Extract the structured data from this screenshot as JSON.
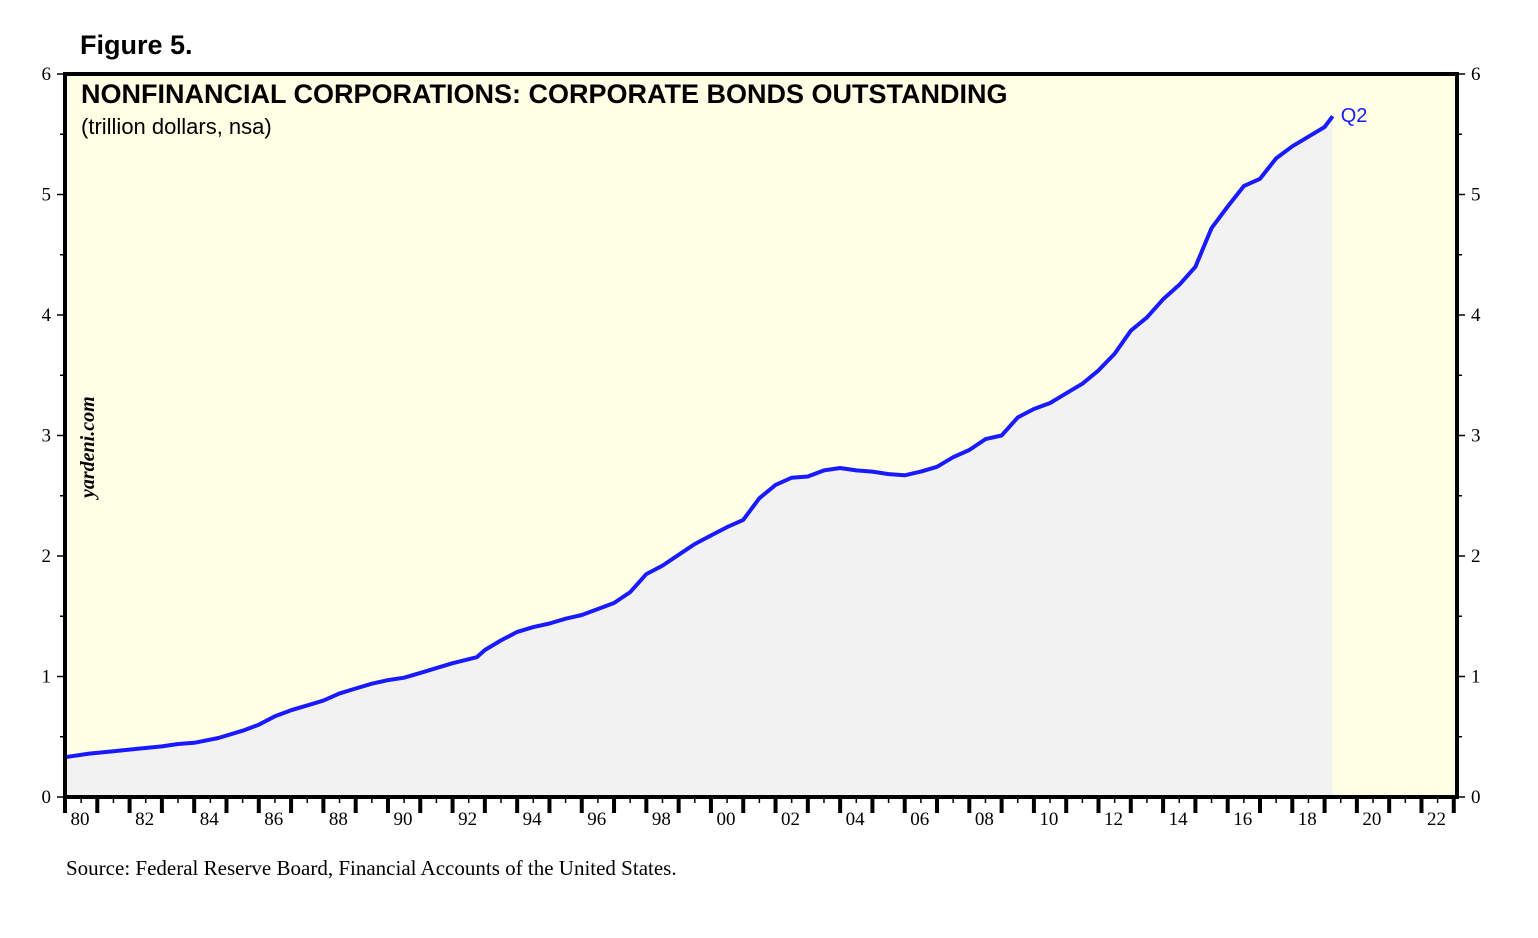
{
  "figure_label": "Figure 5.",
  "source": "Source: Federal Reserve Board, Financial Accounts of the United States.",
  "colors": {
    "background": "#ffffe6",
    "area": "#f2f2f2",
    "line": "#1a1aff",
    "frame": "#000000"
  },
  "chart_data": {
    "type": "area",
    "title": "NONFINANCIAL CORPORATIONS: CORPORATE BONDS OUTSTANDING",
    "subtitle": "(trillion dollars, nsa)",
    "watermark": "yardeni.com",
    "annotation": "Q2",
    "xlabel": "",
    "ylabel": "",
    "xlim": [
      1980,
      2023.1
    ],
    "ylim": [
      0,
      6
    ],
    "y_ticks": [
      0,
      1,
      2,
      3,
      4,
      5,
      6
    ],
    "y_tick_labels": [
      "0",
      "1",
      "2",
      "3",
      "4",
      "5",
      "6"
    ],
    "x_tick_labels": [
      "80",
      "82",
      "84",
      "86",
      "88",
      "90",
      "92",
      "94",
      "96",
      "98",
      "00",
      "02",
      "04",
      "06",
      "08",
      "10",
      "12",
      "14",
      "16",
      "18",
      "20",
      "22"
    ],
    "x_tick_years": [
      1980,
      1982,
      1984,
      1986,
      1988,
      1990,
      1992,
      1994,
      1996,
      1998,
      2000,
      2002,
      2004,
      2006,
      2008,
      2010,
      2012,
      2014,
      2016,
      2018,
      2020,
      2022
    ],
    "series": [
      {
        "name": "Corporate bonds outstanding",
        "x": [
          1980.0,
          1980.75,
          1981.5,
          1982.25,
          1983.0,
          1983.5,
          1984.0,
          1984.75,
          1985.5,
          1986.0,
          1986.5,
          1987.0,
          1987.5,
          1988.0,
          1988.5,
          1989.0,
          1989.5,
          1990.0,
          1990.5,
          1991.0,
          1991.5,
          1992.0,
          1992.75,
          1993.0,
          1993.5,
          1994.0,
          1994.5,
          1995.0,
          1995.5,
          1996.0,
          1996.5,
          1997.0,
          1997.5,
          1998.0,
          1998.5,
          1999.0,
          1999.5,
          2000.0,
          2000.5,
          2001.0,
          2001.5,
          2002.0,
          2002.5,
          2003.0,
          2003.5,
          2004.0,
          2004.5,
          2005.0,
          2005.5,
          2006.0,
          2006.5,
          2007.0,
          2007.5,
          2008.0,
          2008.5,
          2009.0,
          2009.5,
          2010.0,
          2010.5,
          2011.0,
          2011.5,
          2012.0,
          2012.5,
          2013.0,
          2013.5,
          2014.0,
          2014.5,
          2015.0,
          2015.5,
          2016.0,
          2016.5,
          2017.0,
          2017.5,
          2018.0,
          2018.5,
          2019.0,
          2019.25
        ],
        "values": [
          0.33,
          0.36,
          0.38,
          0.4,
          0.42,
          0.44,
          0.45,
          0.49,
          0.55,
          0.6,
          0.67,
          0.72,
          0.76,
          0.8,
          0.86,
          0.9,
          0.94,
          0.97,
          0.99,
          1.03,
          1.07,
          1.11,
          1.16,
          1.22,
          1.3,
          1.37,
          1.41,
          1.44,
          1.48,
          1.51,
          1.56,
          1.61,
          1.7,
          1.85,
          1.92,
          2.01,
          2.1,
          2.17,
          2.24,
          2.3,
          2.48,
          2.59,
          2.65,
          2.66,
          2.71,
          2.73,
          2.71,
          2.7,
          2.68,
          2.67,
          2.7,
          2.74,
          2.82,
          2.88,
          2.97,
          3.0,
          3.15,
          3.22,
          3.27,
          3.35,
          3.43,
          3.54,
          3.68,
          3.87,
          3.98,
          4.13,
          4.25,
          4.4,
          4.72,
          4.9,
          5.07,
          5.13,
          5.3,
          5.4,
          5.48,
          5.56,
          5.65
        ]
      }
    ]
  }
}
